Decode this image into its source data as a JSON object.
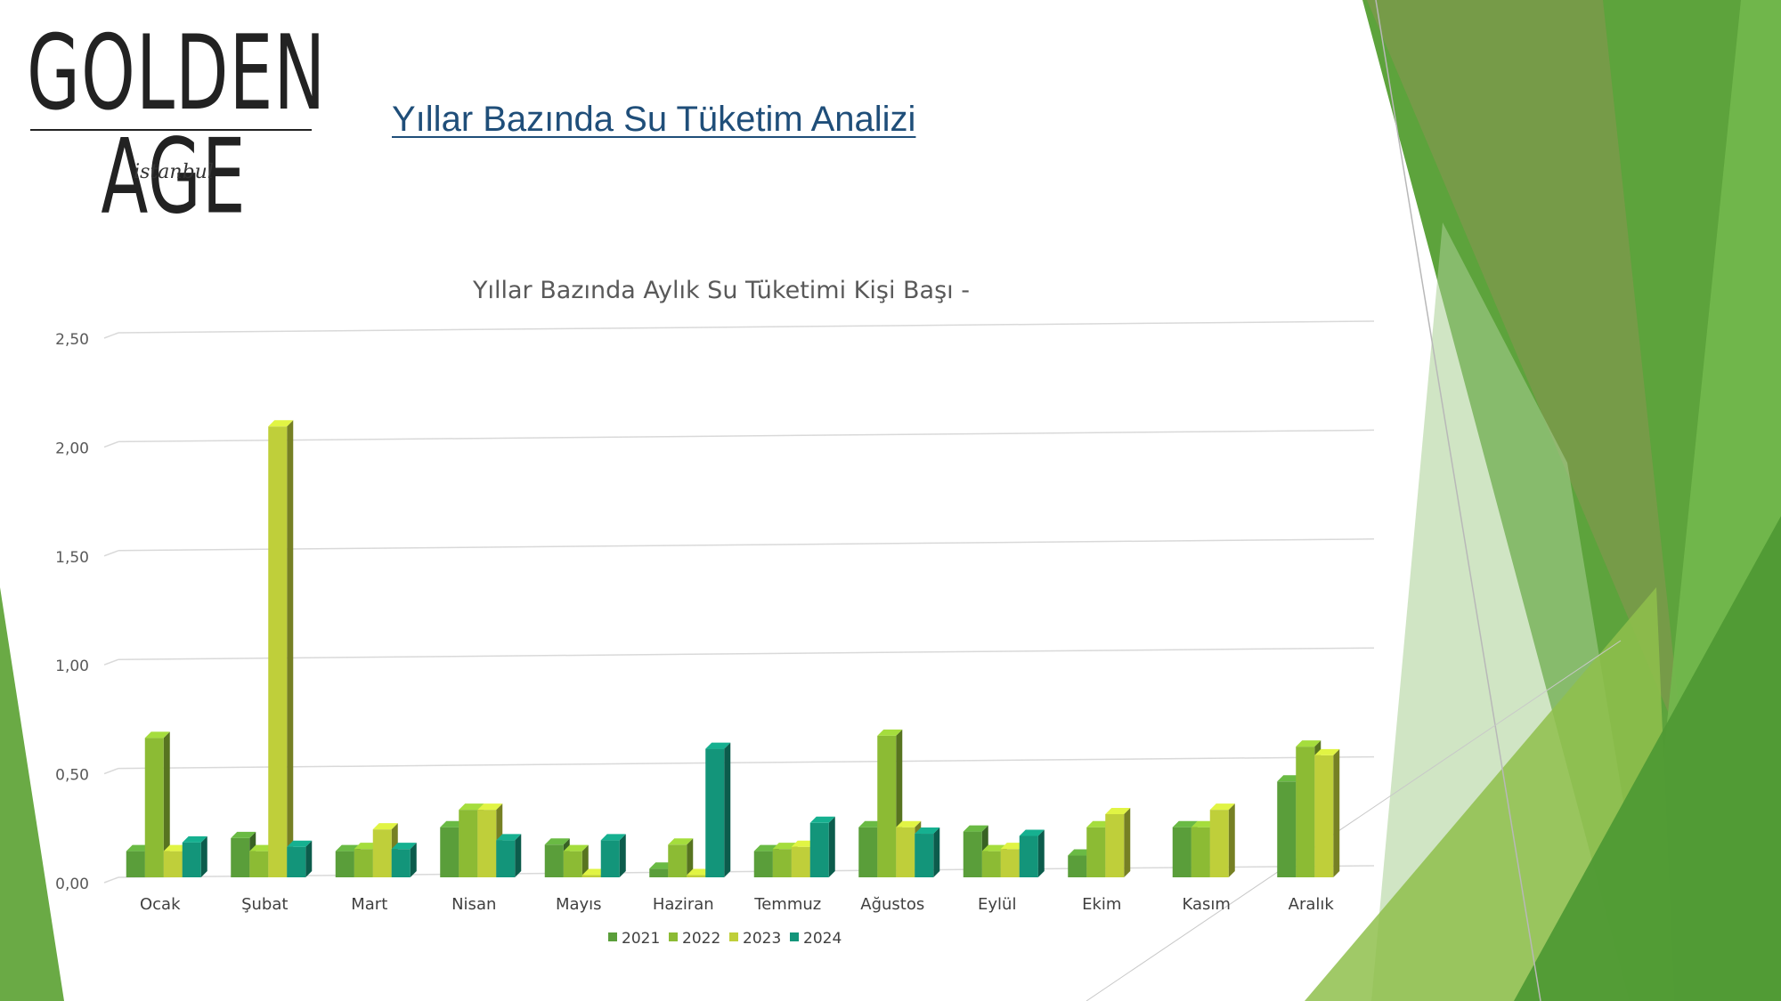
{
  "logo": {
    "name": "GOLDEN AGE",
    "sub": "istanbul"
  },
  "page": {
    "title": "Yıllar Bazında Su Tüketim Analizi"
  },
  "colors": {
    "2021": "#5a9e3a",
    "2022": "#8cbb34",
    "2023": "#bfcf3a",
    "2024": "#13957a"
  },
  "chart_data": {
    "type": "bar",
    "title": "Yıllar Bazında Aylık Su Tüketimi Kişi Başı -",
    "categories": [
      "Ocak",
      "Şubat",
      "Mart",
      "Nisan",
      "Mayıs",
      "Haziran",
      "Temmuz",
      "Ağustos",
      "Eylül",
      "Ekim",
      "Kasım",
      "Aralık"
    ],
    "series": [
      {
        "name": "2021",
        "values": [
          0.12,
          0.18,
          0.12,
          0.23,
          0.15,
          0.04,
          0.12,
          0.23,
          0.21,
          0.1,
          0.23,
          0.44
        ]
      },
      {
        "name": "2022",
        "values": [
          0.64,
          0.12,
          0.13,
          0.31,
          0.12,
          0.15,
          0.13,
          0.65,
          0.12,
          0.23,
          0.23,
          0.6
        ]
      },
      {
        "name": "2023",
        "values": [
          0.12,
          2.07,
          0.22,
          0.31,
          0.01,
          0.01,
          0.14,
          0.23,
          0.13,
          0.29,
          0.31,
          0.56
        ]
      },
      {
        "name": "2024",
        "values": [
          0.16,
          0.14,
          0.13,
          0.17,
          0.17,
          0.59,
          0.25,
          0.2,
          0.19,
          null,
          null,
          null
        ]
      }
    ],
    "yticks": [
      "0,00",
      "0,50",
      "1,00",
      "1,50",
      "2,00",
      "2,50"
    ],
    "ylim": [
      0,
      2.5
    ],
    "grid": true,
    "legend": "bottom"
  }
}
